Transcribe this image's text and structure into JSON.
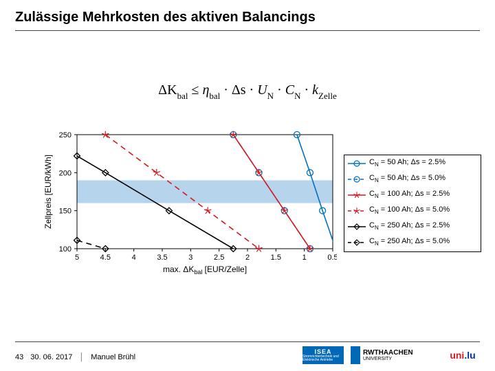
{
  "title": "Zulässige Mehrkosten des aktiven Balancings",
  "formula": {
    "lhs": "ΔK",
    "lhs_sub": "bal",
    "op": " ≤ ",
    "t1": "η",
    "t1_sub": "bal",
    "dot1": " · Δs · ",
    "t2": "U",
    "t2_sub": "N",
    "dot2": " · ",
    "t3": "C",
    "t3_sub": "N",
    "dot3": " · ",
    "t4": "k",
    "t4_sub": "Zelle"
  },
  "chart": {
    "type": "line",
    "plot_bg": "#ffffff",
    "band_color": "#b7d4ed",
    "axis_color": "#000000",
    "grid_color": "#d9d9d9",
    "xlabel": "max. ΔK_bal [EUR/Zelle]",
    "ylabel": "Zellpreis [EUR/kWh]",
    "label_fontsize": 12,
    "tick_fontsize": 11,
    "xlim": [
      5,
      0.5
    ],
    "xticks": [
      5,
      4.5,
      4,
      3.5,
      3,
      2.5,
      2,
      1.5,
      1,
      0.5
    ],
    "ylim": [
      100,
      250
    ],
    "yticks": [
      100,
      150,
      200,
      250
    ],
    "band_y": [
      160,
      190
    ],
    "series": [
      {
        "label": "C_N =  50 Ah; Δs = 2.5%",
        "color": "#0072bd",
        "marker": "circle",
        "dash": "solid",
        "points": [
          [
            1.13,
            250
          ],
          [
            0.9,
            200
          ],
          [
            0.68,
            150
          ],
          [
            0.45,
            100
          ]
        ]
      },
      {
        "label": "C_N =  50 Ah; Δs = 5.0%",
        "color": "#0072bd",
        "marker": "circle",
        "dash": "dash",
        "points": [
          [
            2.25,
            250
          ],
          [
            1.8,
            200
          ],
          [
            1.35,
            150
          ],
          [
            0.9,
            100
          ]
        ]
      },
      {
        "label": "C_N = 100 Ah; Δs = 2.5%",
        "color": "#d71920",
        "marker": "star",
        "dash": "solid",
        "points": [
          [
            2.25,
            250
          ],
          [
            1.8,
            200
          ],
          [
            1.35,
            150
          ],
          [
            0.9,
            100
          ]
        ]
      },
      {
        "label": "C_N = 100 Ah; Δs = 5.0%",
        "color": "#d71920",
        "marker": "star",
        "dash": "dash",
        "points": [
          [
            4.5,
            250
          ],
          [
            3.6,
            200
          ],
          [
            2.7,
            150
          ],
          [
            1.8,
            100
          ]
        ]
      },
      {
        "label": "C_N = 250 Ah; Δs = 2.5%",
        "color": "#000000",
        "marker": "diamond",
        "dash": "solid",
        "points": [
          [
            5.0,
            222
          ],
          [
            4.5,
            200
          ],
          [
            3.38,
            150
          ],
          [
            2.25,
            100
          ]
        ]
      },
      {
        "label": "C_N = 250 Ah; Δs = 5.0%",
        "color": "#000000",
        "marker": "diamond",
        "dash": "dash",
        "points": [
          [
            5.0,
            111
          ],
          [
            4.5,
            100
          ]
        ]
      }
    ]
  },
  "footer": {
    "page": "43",
    "date": "30. 06. 2017",
    "author": "Manuel Brühl"
  },
  "logos": {
    "isea": "ISEA",
    "isea_sub": "Stromrichtertechnik und Elektrische Antriebe",
    "rwth": "RWTHAACHEN",
    "rwth_sub": "UNIVERSITY",
    "uni_red": "uni",
    "uni_blue": ".lu"
  }
}
